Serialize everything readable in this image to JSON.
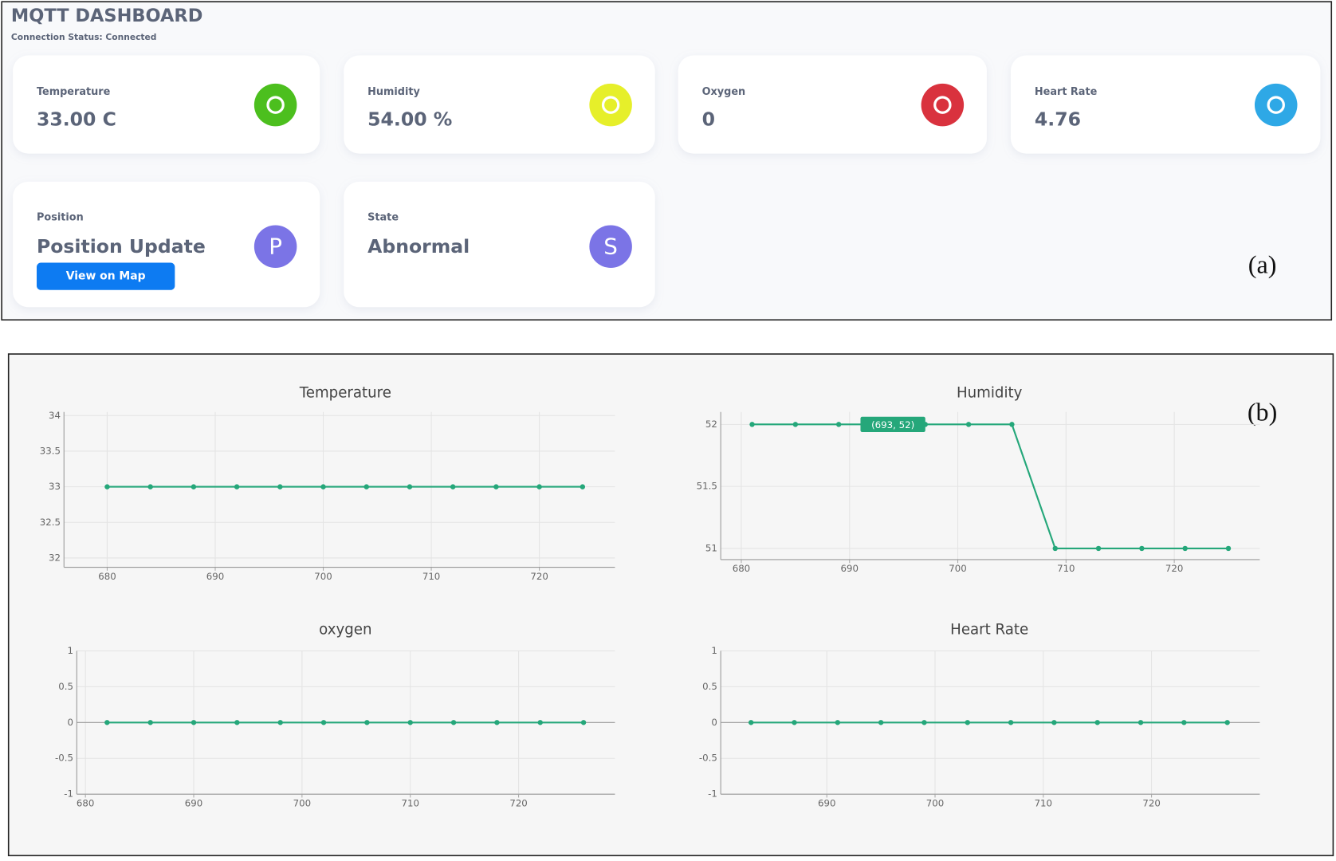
{
  "dashboard": {
    "title": "MQTT DASHBOARD",
    "status": "Connection Status: Connected",
    "cards": [
      {
        "label": "Temperature",
        "value": "33.00 C",
        "color": "#4cbf1e"
      },
      {
        "label": "Humidity",
        "value": "54.00 %",
        "color": "#e6ef2a"
      },
      {
        "label": "Oxygen",
        "value": "0",
        "color": "#d9323e"
      },
      {
        "label": "Heart Rate",
        "value": "4.76",
        "color": "#2ea8e6"
      },
      {
        "label": "Position",
        "value": "Position Update",
        "color": "#7b74e6",
        "icon": "P",
        "button": "View on Map"
      },
      {
        "label": "State",
        "value": "Abnormal",
        "color": "#7b74e6",
        "icon": "S"
      }
    ],
    "panel_labels": [
      "(a)",
      "(b)"
    ]
  },
  "chart_data": [
    {
      "type": "line",
      "title": "Temperature",
      "x": [
        680,
        684,
        688,
        692,
        696,
        700,
        704,
        708,
        712,
        716,
        720,
        724
      ],
      "values": [
        33,
        33,
        33,
        33,
        33,
        33,
        33,
        33,
        33,
        33,
        33,
        33
      ],
      "color": "#25a77a",
      "xlim": [
        676,
        727
      ],
      "ylim": [
        31.87,
        34.05
      ],
      "xticks": [
        680,
        690,
        700,
        710,
        720
      ],
      "yticks": [
        32,
        32.5,
        33,
        33.5,
        34
      ],
      "grid": true
    },
    {
      "type": "line",
      "title": "Humidity",
      "x": [
        681,
        685,
        689,
        693,
        697,
        701,
        705,
        709,
        713,
        717,
        721,
        725
      ],
      "values": [
        52,
        52,
        52,
        52,
        52,
        52,
        52,
        51,
        51,
        51,
        51,
        51
      ],
      "color": "#25a77a",
      "xlim": [
        678.1,
        727.9
      ],
      "ylim": [
        50.91,
        52.1
      ],
      "xticks": [
        680,
        690,
        700,
        710,
        720
      ],
      "yticks": [
        51,
        51.5,
        52
      ],
      "grid": true,
      "tooltip": "(693, 52)"
    },
    {
      "type": "line",
      "title": "oxygen",
      "x": [
        682,
        686,
        690,
        694,
        698,
        702,
        706,
        710,
        714,
        718,
        722,
        726
      ],
      "values": [
        0,
        0,
        0,
        0,
        0,
        0,
        0,
        0,
        0,
        0,
        0,
        0
      ],
      "color": "#25a77a",
      "xlim": [
        679.2,
        728.9
      ],
      "ylim": [
        -1,
        1
      ],
      "xticks": [
        680,
        690,
        700,
        710,
        720
      ],
      "yticks": [
        -1,
        -0.5,
        0,
        0.5,
        1
      ],
      "grid": true
    },
    {
      "type": "line",
      "title": "Heart Rate",
      "x": [
        683,
        687,
        691,
        695,
        699,
        703,
        707,
        711,
        715,
        719,
        723,
        727
      ],
      "values": [
        0,
        0,
        0,
        0,
        0,
        0,
        0,
        0,
        0,
        0,
        0,
        0
      ],
      "color": "#25a77a",
      "xlim": [
        680.2,
        730
      ],
      "ylim": [
        -1,
        1
      ],
      "xticks": [
        690,
        700,
        710,
        720
      ],
      "yticks": [
        -1,
        -0.5,
        0,
        0.5,
        1
      ],
      "grid": true
    }
  ]
}
